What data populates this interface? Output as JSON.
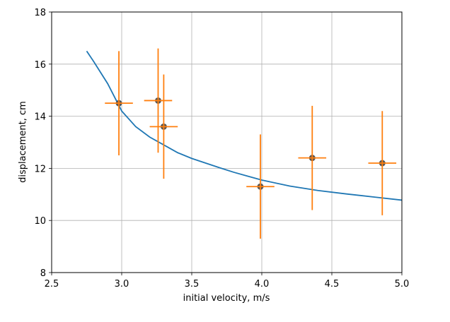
{
  "chart_data": {
    "type": "scatter",
    "xlabel": "initial velocity, m/s",
    "ylabel": "displacement, cm",
    "xlim": [
      2.5,
      5.0
    ],
    "ylim": [
      8,
      18
    ],
    "xticks": [
      "2.5",
      "3.0",
      "3.5",
      "4.0",
      "4.5",
      "5.0"
    ],
    "yticks": [
      "8",
      "10",
      "12",
      "14",
      "16",
      "18"
    ],
    "grid": true,
    "colors": {
      "points": "#555555",
      "errorbars": "#ff7f0e",
      "fit": "#1f77b4"
    },
    "points": [
      {
        "x": 2.98,
        "y": 14.5,
        "xerr": 0.1,
        "yerr": 2.0
      },
      {
        "x": 3.26,
        "y": 14.6,
        "xerr": 0.1,
        "yerr": 2.0
      },
      {
        "x": 3.3,
        "y": 13.6,
        "xerr": 0.1,
        "yerr": 2.0
      },
      {
        "x": 3.99,
        "y": 11.3,
        "xerr": 0.1,
        "yerr": 2.0
      },
      {
        "x": 4.36,
        "y": 12.4,
        "xerr": 0.1,
        "yerr": 2.0
      },
      {
        "x": 4.86,
        "y": 12.2,
        "xerr": 0.1,
        "yerr": 2.0
      }
    ],
    "fit_curve": {
      "x": [
        2.75,
        2.8,
        2.9,
        3.0,
        3.1,
        3.2,
        3.3,
        3.4,
        3.5,
        3.6,
        3.7,
        3.8,
        3.9,
        4.0,
        4.2,
        4.4,
        4.6,
        4.8,
        5.0
      ],
      "y": [
        16.5,
        16.1,
        15.25,
        14.2,
        13.6,
        13.2,
        12.9,
        12.6,
        12.38,
        12.2,
        12.02,
        11.85,
        11.7,
        11.55,
        11.32,
        11.15,
        11.02,
        10.9,
        10.78
      ]
    }
  }
}
